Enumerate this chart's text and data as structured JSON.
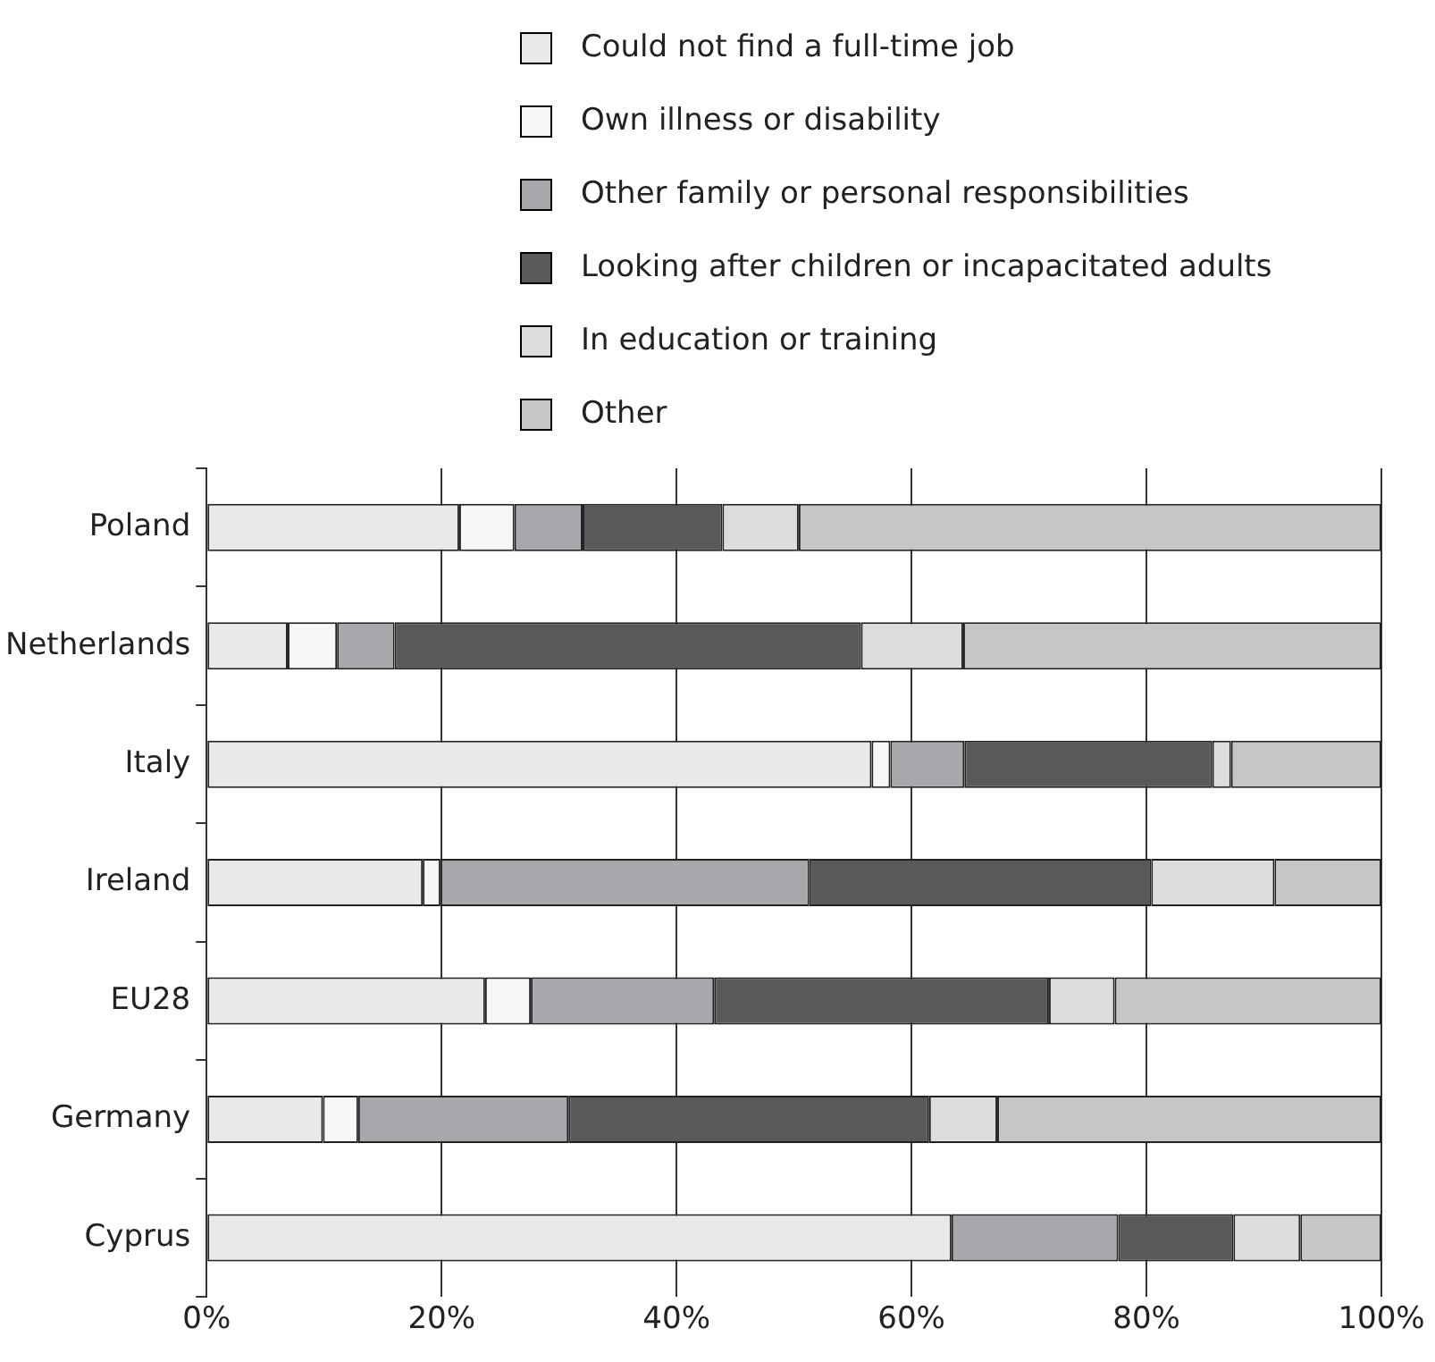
{
  "chart_data": {
    "type": "bar",
    "orientation": "horizontal",
    "stacked": true,
    "categories": [
      "Poland",
      "Netherlands",
      "Italy",
      "Ireland",
      "EU28",
      "Germany",
      "Cyprus"
    ],
    "series": [
      {
        "name": "Could not find a full-time job",
        "color": "#e9e9e9",
        "values": [
          21.5,
          6.9,
          56.6,
          18.4,
          23.7,
          9.9,
          63.4
        ]
      },
      {
        "name": "Own illness or disability",
        "color": "#f7f7f7",
        "values": [
          4.7,
          4.2,
          1.6,
          1.5,
          3.9,
          3.0,
          0
        ]
      },
      {
        "name": "Other family or personal responsibilities",
        "color": "#a7a8ab",
        "values": [
          5.8,
          4.9,
          6.3,
          31.4,
          15.6,
          17.9,
          14.2
        ]
      },
      {
        "name": "Looking after children or incapacitated adults",
        "color": "#58595b",
        "values": [
          11.9,
          39.7,
          21.1,
          29.1,
          28.5,
          30.7,
          9.8
        ]
      },
      {
        "name": "In education or training",
        "color": "#dcdddf",
        "values": [
          6.5,
          8.7,
          1.6,
          10.5,
          5.6,
          5.8,
          5.7
        ]
      },
      {
        "name": "Other",
        "color": "#c6c6c6",
        "values": [
          49.6,
          35.6,
          12.8,
          9.1,
          22.7,
          32.7,
          6.9
        ]
      }
    ],
    "xlim": [
      0,
      100
    ],
    "xticks": [
      {
        "value": 0,
        "label": "0%"
      },
      {
        "value": 20,
        "label": "20%"
      },
      {
        "value": 40,
        "label": "40%"
      },
      {
        "value": 60,
        "label": "60%"
      },
      {
        "value": 80,
        "label": "80%"
      },
      {
        "value": 100,
        "label": "100%"
      }
    ],
    "grid": "x",
    "legend": "top"
  }
}
